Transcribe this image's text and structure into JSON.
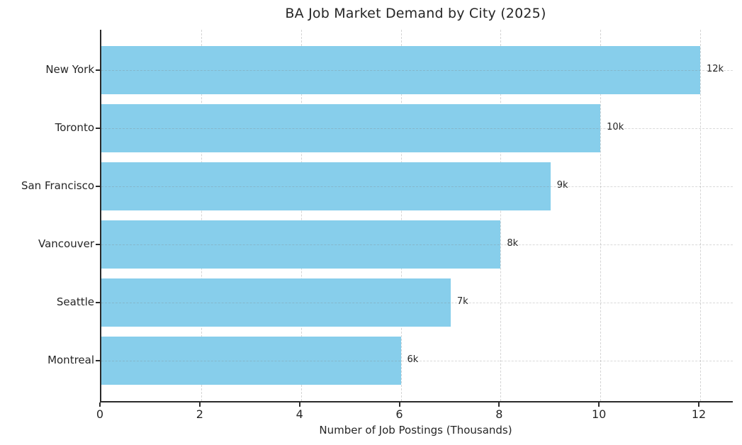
{
  "chart_data": {
    "type": "bar",
    "orientation": "horizontal",
    "title": "BA Job Market Demand by City (2025)",
    "xlabel": "Number of Job Postings (Thousands)",
    "ylabel": "",
    "categories": [
      "New York",
      "Toronto",
      "San Francisco",
      "Vancouver",
      "Seattle",
      "Montreal"
    ],
    "values": [
      12,
      10,
      9,
      8,
      7,
      6
    ],
    "value_labels": [
      "12k",
      "10k",
      "9k",
      "8k",
      "7k",
      "6k"
    ],
    "xticks": [
      0,
      2,
      4,
      6,
      8,
      10,
      12
    ],
    "xlim": [
      0,
      12.65
    ],
    "grid": "dashed",
    "legend": "none",
    "colors": {
      "bar": "#87CEEB",
      "grid": "#d4d4d4",
      "spine": "#2a2a2a",
      "text": "#262626",
      "background": "#ffffff"
    }
  }
}
